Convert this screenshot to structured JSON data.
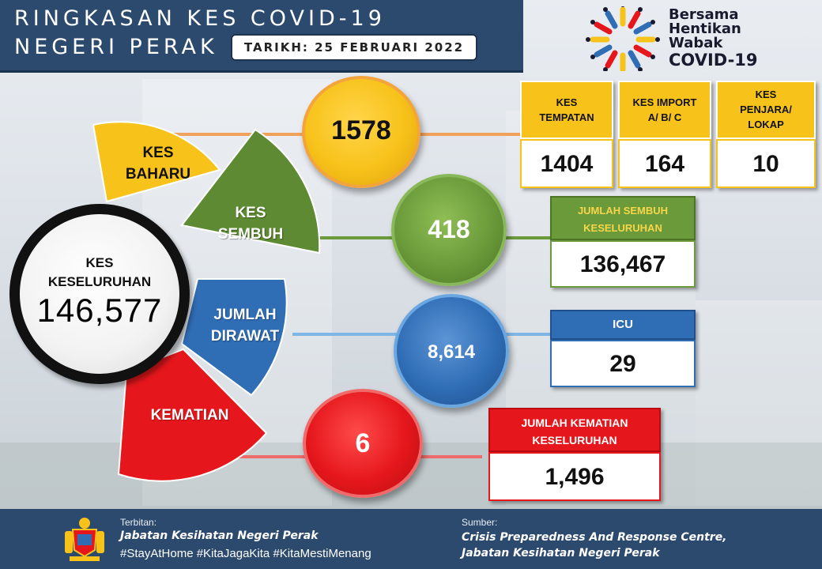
{
  "header": {
    "title_line1": "RINGKASAN KES COVID-19",
    "title_line2": "NEGERI PERAK",
    "date": "TARIKH: 25 FEBRUARI 2022"
  },
  "logo": {
    "line1": "Bersama",
    "line2": "Hentikan",
    "line3": "Wabak",
    "line4": "COVID-19"
  },
  "total": {
    "label_line1": "KES",
    "label_line2": "KESELURUHAN",
    "value": "146,577"
  },
  "new_cases": {
    "label_line1": "KES",
    "label_line2": "BAHARU",
    "value": "1578",
    "breakdown": [
      {
        "label_line1": "KES",
        "label_line2": "TEMPATAN",
        "label_line3": "",
        "value": "1404"
      },
      {
        "label_line1": "KES IMPORT",
        "label_line2": "A/ B/ C",
        "label_line3": "",
        "value": "164"
      },
      {
        "label_line1": "KES",
        "label_line2": "PENJARA/",
        "label_line3": "LOKAP",
        "value": "10"
      }
    ]
  },
  "recovered": {
    "label_line1": "KES",
    "label_line2": "SEMBUH",
    "value": "418",
    "total_label_line1": "JUMLAH SEMBUH",
    "total_label_line2": "KESELURUHAN",
    "total_value": "136,467"
  },
  "treated": {
    "label_line1": "JUMLAH",
    "label_line2": "DIRAWAT",
    "value": "8,614",
    "icu_label": "ICU",
    "icu_value": "29"
  },
  "deaths": {
    "label": "KEMATIAN",
    "value": "6",
    "total_label_line1": "JUMLAH KEMATIAN",
    "total_label_line2": "KESELURUHAN",
    "total_value": "1,496"
  },
  "footer": {
    "published_label": "Terbitan:",
    "publisher": "Jabatan Kesihatan Negeri Perak",
    "hashtags": "#StayAtHome #KitaJagaKita #KitaMestiMenang",
    "source_label": "Sumber:",
    "source_line1": "Crisis Preparedness And Response Centre,",
    "source_line2": "Jabatan Kesihatan Negeri Perak"
  },
  "colors": {
    "navy": "#2c4a6e",
    "yellow": "#f7c21a",
    "green": "#6a9a3a",
    "blue": "#2f6db5",
    "red": "#e5171c"
  }
}
